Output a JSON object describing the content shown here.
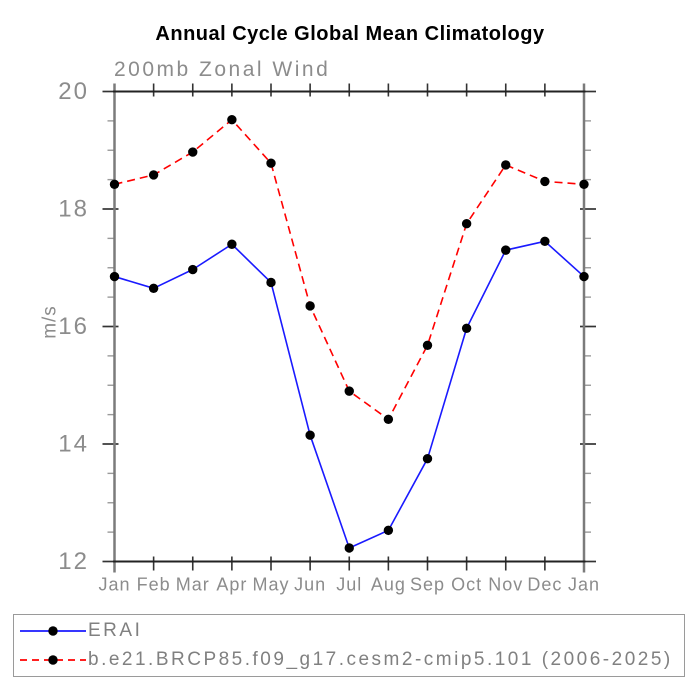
{
  "chart_data": {
    "type": "line",
    "title": "Annual Cycle Global Mean Climatology",
    "subtitle": "200mb Zonal Wind",
    "ylabel": "m/s",
    "xlabel": "",
    "categories": [
      "Jan",
      "Feb",
      "Mar",
      "Apr",
      "May",
      "Jun",
      "Jul",
      "Aug",
      "Sep",
      "Oct",
      "Nov",
      "Dec",
      "Jan"
    ],
    "series": [
      {
        "name": "ERAI",
        "color": "#1a1aff",
        "style": "solid",
        "marker": "circle",
        "marker_color": "#000000",
        "values": [
          16.85,
          16.65,
          16.97,
          17.4,
          16.75,
          14.15,
          12.23,
          12.53,
          13.75,
          15.97,
          17.3,
          17.45,
          16.85
        ]
      },
      {
        "name": "b.e21.BRCP85.f09_g17.cesm2-cmip5.101 (2006-2025)",
        "color": "#ff0000",
        "style": "dashed",
        "marker": "circle",
        "marker_color": "#000000",
        "values": [
          18.42,
          18.58,
          18.97,
          19.52,
          18.78,
          16.35,
          14.9,
          14.42,
          15.68,
          17.75,
          18.75,
          18.47,
          18.42
        ]
      }
    ],
    "ylim": [
      12,
      20
    ],
    "yticks_major": [
      12,
      14,
      16,
      18,
      20
    ],
    "ytick_minor_step": 0.5,
    "grid": false,
    "legend_position": "bottom"
  }
}
